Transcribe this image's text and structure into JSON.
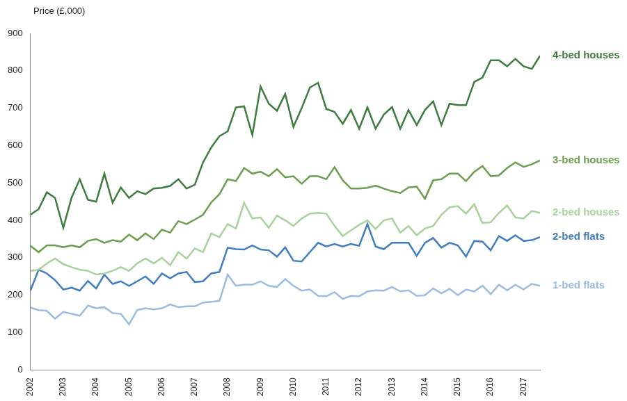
{
  "chart_data": {
    "type": "line",
    "y_label": "Price (£,000)",
    "categories": [
      "2002",
      null,
      null,
      null,
      "2003",
      null,
      null,
      null,
      "2004",
      null,
      null,
      null,
      "2005",
      null,
      null,
      null,
      "2006",
      null,
      null,
      null,
      "2007",
      null,
      null,
      null,
      "2008",
      null,
      null,
      null,
      "2009",
      null,
      null,
      null,
      "2010",
      null,
      null,
      null,
      "2011",
      null,
      null,
      null,
      "2012",
      null,
      null,
      null,
      "2013",
      null,
      null,
      null,
      "2014",
      null,
      null,
      null,
      "2015",
      null,
      null,
      null,
      "2016",
      null,
      null,
      null,
      "2017",
      null,
      null
    ],
    "series": [
      {
        "name": "4-bed houses",
        "color": "#3e7b3e",
        "values": [
          415,
          430,
          475,
          460,
          380,
          460,
          510,
          455,
          450,
          525,
          447,
          488,
          460,
          478,
          470,
          485,
          487,
          492,
          510,
          485,
          495,
          555,
          595,
          625,
          638,
          702,
          705,
          628,
          758,
          712,
          693,
          738,
          650,
          700,
          755,
          768,
          698,
          690,
          658,
          695,
          645,
          702,
          645,
          683,
          703,
          645,
          695,
          655,
          695,
          718,
          655,
          712,
          708,
          708,
          770,
          782,
          828,
          828,
          812,
          832,
          812,
          805,
          840
        ]
      },
      {
        "name": "3-bed houses",
        "color": "#6a9e4f",
        "values": [
          332,
          315,
          333,
          333,
          328,
          333,
          328,
          345,
          350,
          340,
          347,
          343,
          362,
          347,
          365,
          350,
          375,
          367,
          398,
          390,
          402,
          415,
          448,
          470,
          510,
          505,
          540,
          525,
          530,
          518,
          537,
          515,
          518,
          498,
          518,
          518,
          510,
          542,
          507,
          485,
          485,
          487,
          493,
          485,
          478,
          473,
          488,
          490,
          458,
          507,
          510,
          525,
          525,
          505,
          530,
          545,
          518,
          520,
          540,
          555,
          543,
          550,
          560
        ]
      },
      {
        "name": "2-bed houses",
        "color": "#a9d19b",
        "values": [
          265,
          268,
          285,
          298,
          283,
          275,
          268,
          265,
          255,
          258,
          265,
          275,
          265,
          285,
          298,
          285,
          300,
          280,
          315,
          298,
          325,
          315,
          365,
          355,
          390,
          378,
          447,
          405,
          408,
          380,
          413,
          400,
          385,
          405,
          418,
          420,
          418,
          385,
          358,
          373,
          388,
          400,
          377,
          400,
          405,
          367,
          385,
          360,
          378,
          385,
          415,
          435,
          438,
          418,
          443,
          393,
          395,
          420,
          440,
          408,
          405,
          425,
          420
        ]
      },
      {
        "name": "2-bed flats",
        "color": "#3f7cc0",
        "values": [
          212,
          268,
          258,
          240,
          215,
          220,
          212,
          238,
          218,
          255,
          230,
          237,
          225,
          237,
          250,
          230,
          258,
          245,
          258,
          262,
          235,
          237,
          258,
          262,
          327,
          323,
          322,
          333,
          322,
          320,
          303,
          328,
          292,
          290,
          315,
          340,
          330,
          337,
          330,
          337,
          332,
          390,
          330,
          323,
          340,
          340,
          340,
          305,
          340,
          353,
          327,
          340,
          333,
          303,
          345,
          343,
          320,
          358,
          345,
          360,
          345,
          347,
          355
        ]
      },
      {
        "name": "1-bed flats",
        "color": "#9bbbe0",
        "values": [
          167,
          160,
          158,
          137,
          155,
          150,
          145,
          172,
          165,
          168,
          152,
          150,
          122,
          160,
          165,
          162,
          165,
          175,
          168,
          170,
          170,
          180,
          182,
          185,
          255,
          225,
          228,
          228,
          237,
          225,
          222,
          243,
          225,
          212,
          215,
          198,
          197,
          208,
          190,
          198,
          197,
          210,
          213,
          212,
          222,
          210,
          213,
          198,
          200,
          218,
          205,
          217,
          200,
          215,
          210,
          225,
          203,
          228,
          213,
          228,
          215,
          230,
          225
        ]
      }
    ],
    "ylim": [
      0,
      900
    ],
    "yticks": [
      0,
      100,
      200,
      300,
      400,
      500,
      600,
      700,
      800,
      900
    ],
    "grid": false
  }
}
